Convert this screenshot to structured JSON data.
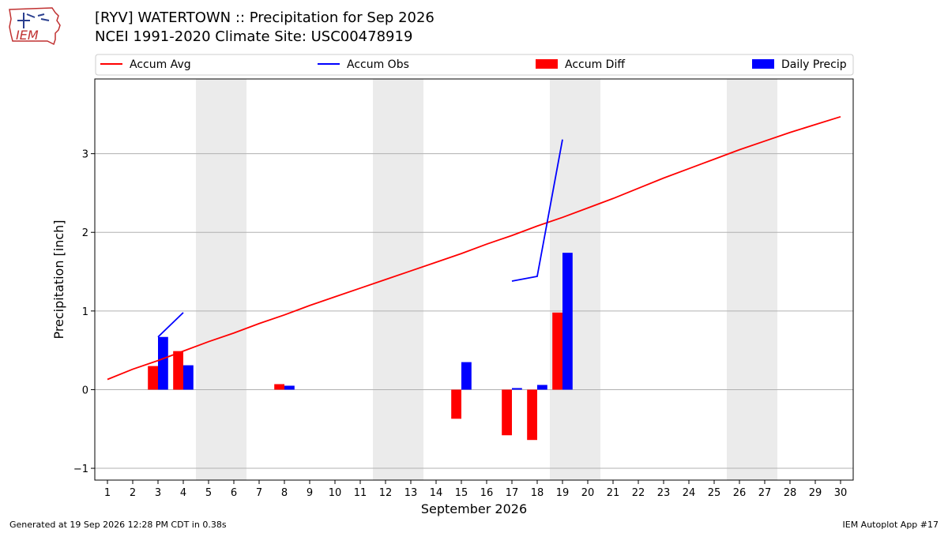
{
  "header": {
    "title_line1": "[RYV] WATERTOWN :: Precipitation for Sep 2026",
    "title_line2": "NCEI 1991-2020 Climate Site: USC00478919",
    "logo_text": "IEM"
  },
  "footer": {
    "left": "Generated at 19 Sep 2026 12:28 PM CDT in 0.38s",
    "right": "IEM Autoplot App #17"
  },
  "colors": {
    "accum_avg": "#ff0000",
    "accum_obs": "#0000ff",
    "accum_diff": "#ff0000",
    "daily_precip": "#0000ff",
    "weekend_shade": "#ebebeb",
    "grid": "#b0b0b0"
  },
  "chart_data": {
    "type": "bar",
    "xlabel": "September 2026",
    "ylabel": "Precipitation [inch]",
    "xlim": [
      0.5,
      30.5
    ],
    "ylim": [
      -1.15,
      3.95
    ],
    "yticks": [
      -1,
      0,
      1,
      2,
      3
    ],
    "ytick_labels": [
      "−1",
      "0",
      "1",
      "2",
      "3"
    ],
    "days": [
      1,
      2,
      3,
      4,
      5,
      6,
      7,
      8,
      9,
      10,
      11,
      12,
      13,
      14,
      15,
      16,
      17,
      18,
      19,
      20,
      21,
      22,
      23,
      24,
      25,
      26,
      27,
      28,
      29,
      30
    ],
    "weekend_ranges": [
      [
        5,
        6
      ],
      [
        12,
        13
      ],
      [
        19,
        20
      ],
      [
        26,
        27
      ]
    ],
    "grid": "horizontal",
    "legend": {
      "placement": "top",
      "entries": [
        {
          "label": "Accum Avg",
          "kind": "line",
          "key": "accum_avg"
        },
        {
          "label": "Accum Obs",
          "kind": "line",
          "key": "accum_obs"
        },
        {
          "label": "Accum Diff",
          "kind": "patch",
          "key": "accum_diff"
        },
        {
          "label": "Daily Precip",
          "kind": "patch",
          "key": "daily_precip"
        }
      ]
    },
    "series": [
      {
        "name": "Accum Avg",
        "type": "line",
        "x": [
          1,
          2,
          3,
          4,
          5,
          6,
          7,
          8,
          9,
          10,
          11,
          12,
          13,
          14,
          15,
          16,
          17,
          18,
          19,
          20,
          21,
          22,
          23,
          24,
          25,
          26,
          27,
          28,
          29,
          30
        ],
        "values": [
          0.13,
          0.26,
          0.37,
          0.49,
          0.61,
          0.72,
          0.84,
          0.95,
          1.07,
          1.18,
          1.29,
          1.4,
          1.51,
          1.62,
          1.73,
          1.85,
          1.96,
          2.08,
          2.19,
          2.31,
          2.43,
          2.56,
          2.69,
          2.81,
          2.93,
          3.05,
          3.16,
          3.27,
          3.37,
          3.47
        ]
      },
      {
        "name": "Accum Obs",
        "type": "line",
        "segments": [
          {
            "x": [
              3,
              4
            ],
            "values": [
              0.67,
              0.98
            ]
          },
          {
            "x": [
              17,
              18,
              19
            ],
            "values": [
              1.38,
              1.44,
              3.18
            ]
          }
        ]
      },
      {
        "name": "Accum Diff",
        "type": "bar",
        "x": [
          3,
          4,
          8,
          15,
          17,
          18,
          19
        ],
        "values": [
          0.3,
          0.49,
          0.07,
          -0.37,
          -0.58,
          -0.64,
          0.98
        ]
      },
      {
        "name": "Daily Precip",
        "type": "bar",
        "x": [
          3,
          4,
          8,
          15,
          17,
          18,
          19
        ],
        "values": [
          0.67,
          0.31,
          0.05,
          0.35,
          0.02,
          0.06,
          1.74
        ]
      }
    ]
  }
}
